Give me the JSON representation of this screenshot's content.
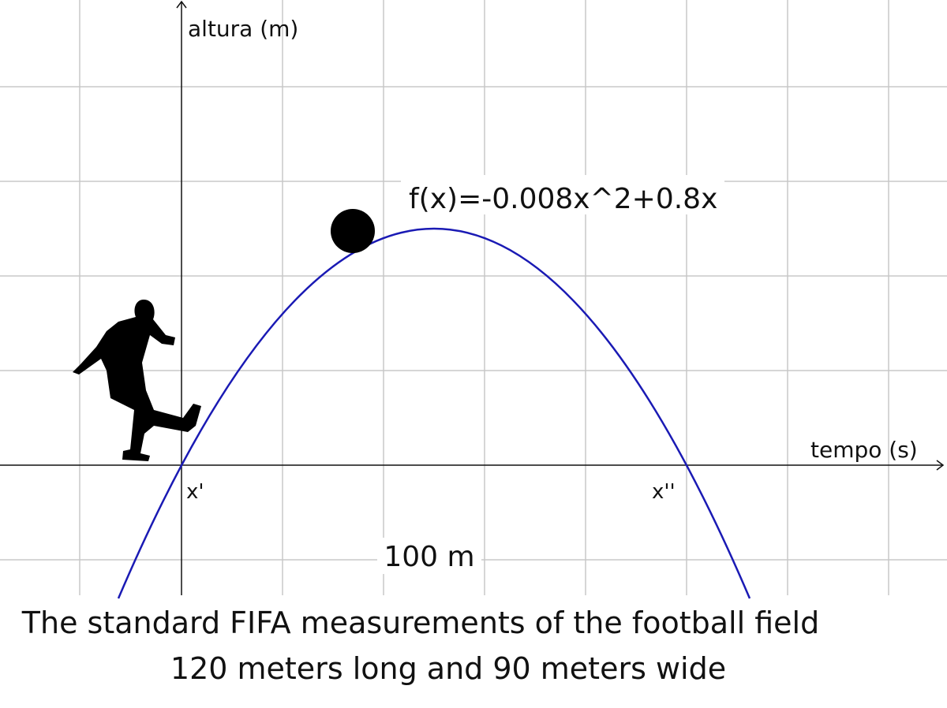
{
  "axes": {
    "y_label": "altura (m)",
    "x_label": "tempo (s)"
  },
  "curve": {
    "formula": "f(x)=-0.008x^2+0.8x"
  },
  "roots": {
    "first": "x'",
    "second": "x''"
  },
  "distance": "100 m",
  "caption": {
    "line1": "The standard FIFA measurements of the football field",
    "line2": "120 meters long and 90 meters wide"
  }
}
